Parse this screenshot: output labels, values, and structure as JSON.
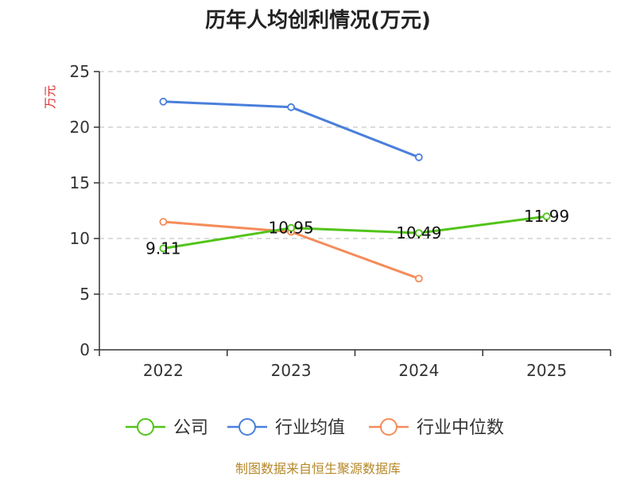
{
  "chart_data": {
    "type": "line",
    "title": "历年人均创利情况(万元)",
    "ylabel": "万元",
    "xlabel": "",
    "categories": [
      "2022",
      "2023",
      "2024",
      "2025"
    ],
    "ylim": [
      0,
      25
    ],
    "yticks": [
      0,
      5,
      10,
      15,
      20,
      25
    ],
    "grid": true,
    "legend_position": "bottom",
    "series": [
      {
        "name": "公司",
        "color": "#52c41a",
        "values": [
          9.11,
          10.95,
          10.49,
          11.99
        ],
        "labels": [
          "9.11",
          "10.95",
          "10.49",
          "11.99"
        ]
      },
      {
        "name": "行业均值",
        "color": "#4a7fdb",
        "values": [
          22.3,
          21.8,
          17.3,
          null
        ]
      },
      {
        "name": "行业中位数",
        "color": "#f58c5a",
        "values": [
          11.5,
          10.6,
          6.4,
          null
        ]
      }
    ]
  },
  "source_note": "制图数据来自恒生聚源数据库",
  "colors": {
    "ylabel": "#d9302c",
    "source": "#b5882a",
    "axis": "#333333",
    "grid": "#c8c8c8"
  }
}
